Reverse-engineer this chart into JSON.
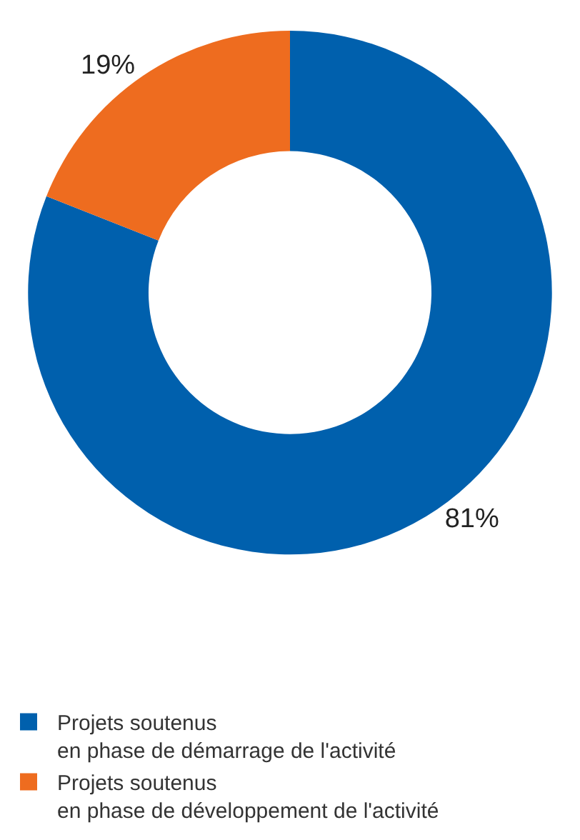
{
  "chart_data": {
    "type": "donut",
    "categories": [
      "Projets soutenus\nen phase de démarrage de l'activité",
      "Projets soutenus\nen phase de développement de l'activité"
    ],
    "values": [
      81,
      19
    ],
    "colors": [
      "#0060ad",
      "#ee6c1f"
    ],
    "value_labels": [
      "81%",
      "19%"
    ],
    "legend": "bottom"
  }
}
